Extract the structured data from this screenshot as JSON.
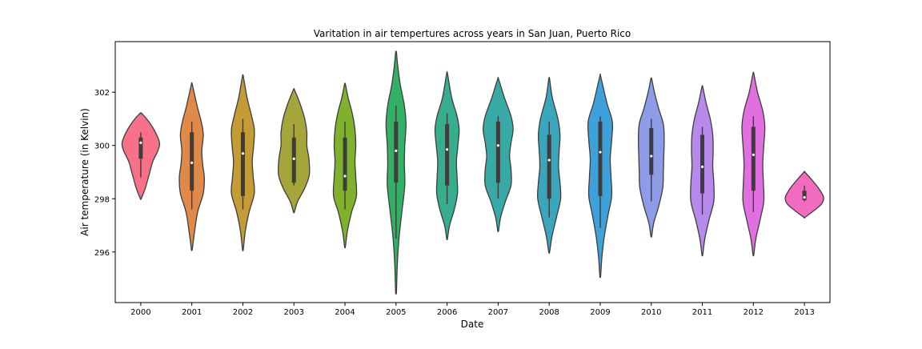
{
  "chart_data": {
    "type": "violin",
    "title": "Varitation in air tempertures across years in San Juan, Puerto Rico",
    "xlabel": "Date",
    "ylabel": "Air temperature (in Kelvin)",
    "ylim": [
      294.1,
      303.9
    ],
    "yticks": [
      296,
      298,
      300,
      302
    ],
    "grid": false,
    "legend": "none",
    "categories": [
      "2000",
      "2001",
      "2002",
      "2003",
      "2004",
      "2005",
      "2006",
      "2007",
      "2008",
      "2009",
      "2010",
      "2011",
      "2012",
      "2013"
    ],
    "series": [
      {
        "category": "2000",
        "color": "#f77189",
        "min": 298.0,
        "max": 301.2,
        "q1": 299.5,
        "median": 300.1,
        "q3": 300.3,
        "whisker_low": 298.8,
        "whisker_high": 300.5,
        "profile": [
          [
            298.0,
            0.02
          ],
          [
            298.4,
            0.22
          ],
          [
            298.9,
            0.4
          ],
          [
            299.4,
            0.58
          ],
          [
            299.8,
            0.82
          ],
          [
            300.1,
            0.9
          ],
          [
            300.5,
            0.7
          ],
          [
            300.9,
            0.38
          ],
          [
            301.2,
            0.05
          ]
        ]
      },
      {
        "category": "2001",
        "color": "#e08a49",
        "min": 296.1,
        "max": 302.3,
        "q1": 298.3,
        "median": 299.35,
        "q3": 300.5,
        "whisker_low": 297.6,
        "whisker_high": 300.9,
        "profile": [
          [
            296.1,
            0.02
          ],
          [
            296.7,
            0.12
          ],
          [
            297.5,
            0.28
          ],
          [
            298.2,
            0.55
          ],
          [
            298.8,
            0.6
          ],
          [
            299.3,
            0.52
          ],
          [
            299.8,
            0.48
          ],
          [
            300.4,
            0.55
          ],
          [
            300.9,
            0.45
          ],
          [
            301.5,
            0.25
          ],
          [
            302.3,
            0.02
          ]
        ]
      },
      {
        "category": "2002",
        "color": "#c39b37",
        "min": 296.1,
        "max": 302.6,
        "q1": 298.1,
        "median": 299.7,
        "q3": 300.5,
        "whisker_low": 297.6,
        "whisker_high": 301.0,
        "profile": [
          [
            296.1,
            0.02
          ],
          [
            296.8,
            0.12
          ],
          [
            297.5,
            0.3
          ],
          [
            298.2,
            0.55
          ],
          [
            298.8,
            0.5
          ],
          [
            299.4,
            0.45
          ],
          [
            300.0,
            0.52
          ],
          [
            300.6,
            0.55
          ],
          [
            301.1,
            0.42
          ],
          [
            301.8,
            0.2
          ],
          [
            302.6,
            0.02
          ]
        ]
      },
      {
        "category": "2003",
        "color": "#a6a53b",
        "min": 297.5,
        "max": 302.1,
        "q1": 298.6,
        "median": 299.5,
        "q3": 300.3,
        "whisker_low": 298.5,
        "whisker_high": 300.8,
        "profile": [
          [
            297.5,
            0.02
          ],
          [
            297.9,
            0.18
          ],
          [
            298.4,
            0.52
          ],
          [
            298.9,
            0.74
          ],
          [
            299.5,
            0.72
          ],
          [
            300.0,
            0.62
          ],
          [
            300.5,
            0.62
          ],
          [
            301.0,
            0.52
          ],
          [
            301.6,
            0.28
          ],
          [
            302.1,
            0.02
          ]
        ]
      },
      {
        "category": "2004",
        "color": "#7fb12c",
        "min": 296.2,
        "max": 302.3,
        "q1": 298.3,
        "median": 298.85,
        "q3": 300.3,
        "whisker_low": 297.6,
        "whisker_high": 300.9,
        "profile": [
          [
            296.2,
            0.02
          ],
          [
            296.8,
            0.12
          ],
          [
            297.5,
            0.32
          ],
          [
            298.1,
            0.55
          ],
          [
            298.8,
            0.52
          ],
          [
            299.4,
            0.48
          ],
          [
            300.0,
            0.52
          ],
          [
            300.6,
            0.48
          ],
          [
            301.2,
            0.35
          ],
          [
            301.8,
            0.15
          ],
          [
            302.3,
            0.02
          ]
        ]
      },
      {
        "category": "2005",
        "color": "#32b166",
        "min": 294.5,
        "max": 303.5,
        "q1": 298.6,
        "median": 299.8,
        "q3": 300.9,
        "whisker_low": 296.5,
        "whisker_high": 301.5,
        "profile": [
          [
            294.5,
            0.02
          ],
          [
            295.5,
            0.06
          ],
          [
            296.5,
            0.14
          ],
          [
            297.5,
            0.28
          ],
          [
            298.5,
            0.42
          ],
          [
            299.3,
            0.4
          ],
          [
            300.0,
            0.42
          ],
          [
            300.8,
            0.48
          ],
          [
            301.5,
            0.4
          ],
          [
            302.3,
            0.2
          ],
          [
            303.0,
            0.08
          ],
          [
            303.5,
            0.02
          ]
        ]
      },
      {
        "category": "2006",
        "color": "#36ad8f",
        "min": 296.5,
        "max": 302.7,
        "q1": 298.5,
        "median": 299.85,
        "q3": 300.8,
        "whisker_low": 297.8,
        "whisker_high": 301.2,
        "profile": [
          [
            296.5,
            0.02
          ],
          [
            297.0,
            0.12
          ],
          [
            297.6,
            0.35
          ],
          [
            298.2,
            0.5
          ],
          [
            298.8,
            0.48
          ],
          [
            299.4,
            0.45
          ],
          [
            300.0,
            0.52
          ],
          [
            300.6,
            0.58
          ],
          [
            301.1,
            0.48
          ],
          [
            301.8,
            0.22
          ],
          [
            302.7,
            0.02
          ]
        ]
      },
      {
        "category": "2007",
        "color": "#38aaa5",
        "min": 296.8,
        "max": 302.5,
        "q1": 298.6,
        "median": 300.0,
        "q3": 300.9,
        "whisker_low": 298.0,
        "whisker_high": 301.1,
        "profile": [
          [
            296.8,
            0.02
          ],
          [
            297.3,
            0.12
          ],
          [
            297.9,
            0.35
          ],
          [
            298.5,
            0.62
          ],
          [
            299.1,
            0.62
          ],
          [
            299.6,
            0.55
          ],
          [
            300.1,
            0.62
          ],
          [
            300.6,
            0.72
          ],
          [
            301.1,
            0.62
          ],
          [
            301.8,
            0.3
          ],
          [
            302.5,
            0.02
          ]
        ]
      },
      {
        "category": "2008",
        "color": "#3aa6bb",
        "min": 296.0,
        "max": 302.5,
        "q1": 298.0,
        "median": 299.45,
        "q3": 300.4,
        "whisker_low": 297.3,
        "whisker_high": 300.9,
        "profile": [
          [
            296.0,
            0.02
          ],
          [
            296.6,
            0.14
          ],
          [
            297.3,
            0.35
          ],
          [
            298.0,
            0.55
          ],
          [
            298.6,
            0.52
          ],
          [
            299.2,
            0.45
          ],
          [
            299.8,
            0.48
          ],
          [
            300.4,
            0.52
          ],
          [
            301.0,
            0.42
          ],
          [
            301.8,
            0.15
          ],
          [
            302.5,
            0.02
          ]
        ]
      },
      {
        "category": "2009",
        "color": "#3ea1d9",
        "min": 295.1,
        "max": 302.6,
        "q1": 298.1,
        "median": 299.75,
        "q3": 300.9,
        "whisker_low": 296.9,
        "whisker_high": 301.1,
        "profile": [
          [
            295.1,
            0.02
          ],
          [
            295.8,
            0.08
          ],
          [
            296.6,
            0.2
          ],
          [
            297.4,
            0.38
          ],
          [
            298.1,
            0.55
          ],
          [
            298.8,
            0.52
          ],
          [
            299.5,
            0.48
          ],
          [
            300.2,
            0.55
          ],
          [
            300.9,
            0.58
          ],
          [
            301.6,
            0.32
          ],
          [
            302.6,
            0.02
          ]
        ]
      },
      {
        "category": "2010",
        "color": "#8e9ce8",
        "min": 296.6,
        "max": 302.5,
        "q1": 298.9,
        "median": 299.6,
        "q3": 300.65,
        "whisker_low": 297.9,
        "whisker_high": 301.0,
        "profile": [
          [
            296.6,
            0.02
          ],
          [
            297.1,
            0.12
          ],
          [
            297.7,
            0.35
          ],
          [
            298.4,
            0.55
          ],
          [
            299.0,
            0.58
          ],
          [
            299.6,
            0.6
          ],
          [
            300.2,
            0.62
          ],
          [
            300.8,
            0.58
          ],
          [
            301.4,
            0.35
          ],
          [
            302.0,
            0.15
          ],
          [
            302.5,
            0.02
          ]
        ]
      },
      {
        "category": "2011",
        "color": "#b789ea",
        "min": 295.9,
        "max": 302.2,
        "q1": 298.2,
        "median": 299.2,
        "q3": 300.4,
        "whisker_low": 297.4,
        "whisker_high": 300.7,
        "profile": [
          [
            295.9,
            0.02
          ],
          [
            296.5,
            0.12
          ],
          [
            297.2,
            0.32
          ],
          [
            297.9,
            0.55
          ],
          [
            298.6,
            0.55
          ],
          [
            299.2,
            0.5
          ],
          [
            299.8,
            0.52
          ],
          [
            300.4,
            0.5
          ],
          [
            301.0,
            0.38
          ],
          [
            301.6,
            0.18
          ],
          [
            302.2,
            0.02
          ]
        ]
      },
      {
        "category": "2012",
        "color": "#e26fe0",
        "min": 295.9,
        "max": 302.7,
        "q1": 298.3,
        "median": 299.65,
        "q3": 300.7,
        "whisker_low": 297.5,
        "whisker_high": 301.1,
        "profile": [
          [
            295.9,
            0.02
          ],
          [
            296.5,
            0.12
          ],
          [
            297.2,
            0.32
          ],
          [
            297.9,
            0.5
          ],
          [
            298.6,
            0.48
          ],
          [
            299.3,
            0.45
          ],
          [
            300.0,
            0.5
          ],
          [
            300.7,
            0.55
          ],
          [
            301.3,
            0.45
          ],
          [
            302.0,
            0.2
          ],
          [
            302.7,
            0.02
          ]
        ]
      },
      {
        "category": "2013",
        "color": "#f26bc0",
        "min": 297.3,
        "max": 299.0,
        "q1": 297.95,
        "median": 298.05,
        "q3": 298.3,
        "whisker_low": 297.9,
        "whisker_high": 298.5,
        "profile": [
          [
            297.3,
            0.02
          ],
          [
            297.55,
            0.45
          ],
          [
            297.8,
            0.82
          ],
          [
            298.05,
            0.92
          ],
          [
            298.35,
            0.72
          ],
          [
            298.65,
            0.42
          ],
          [
            299.0,
            0.02
          ]
        ]
      }
    ]
  }
}
